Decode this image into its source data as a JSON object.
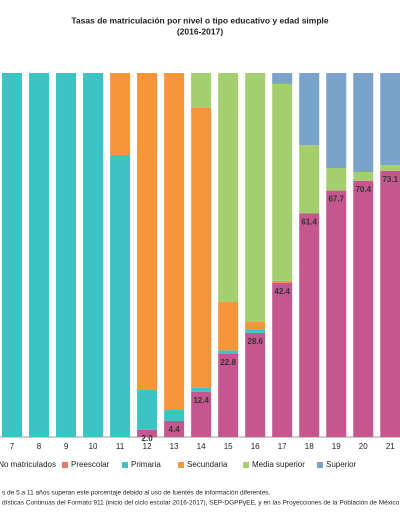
{
  "chart_data": {
    "type": "stacked-bar",
    "title": "Tasas de matriculación por nivel o tipo educativo y edad simple",
    "subtitle": "(2016-2017)",
    "categories": [
      "7",
      "8",
      "9",
      "10",
      "11",
      "12",
      "13",
      "14",
      "15",
      "16",
      "17",
      "18",
      "19",
      "20",
      "21"
    ],
    "ylim": [
      0,
      100
    ],
    "series": [
      {
        "name": "No matriculados",
        "color": "#c5568f",
        "values": [
          0,
          0,
          0,
          0,
          0,
          2.0,
          4.4,
          12.4,
          22.8,
          28.6,
          42.4,
          61.4,
          67.7,
          70.4,
          73.1
        ],
        "value_labels": [
          null,
          null,
          null,
          null,
          null,
          "2.0",
          "4.4",
          "12.4",
          "22.8",
          "28.6",
          "42.4",
          "61.4",
          "67.7",
          "70.4",
          "73.1"
        ]
      },
      {
        "name": "Preescolar",
        "color": "#e9766e",
        "values": [
          0,
          0,
          0,
          0,
          0,
          0,
          0,
          0,
          0,
          0,
          0,
          0,
          0,
          0,
          0
        ]
      },
      {
        "name": "Primaria",
        "color": "#3dc3c3",
        "values": [
          100,
          100,
          100,
          100,
          77.5,
          10.9,
          3,
          1.1,
          1,
          1,
          0,
          0,
          0,
          0,
          0
        ]
      },
      {
        "name": "Secundaria",
        "color": "#f7953b",
        "values": [
          0,
          0,
          0,
          0,
          22.5,
          87.1,
          92.6,
          76.9,
          13.3,
          2,
          0.5,
          0,
          0,
          0,
          0
        ]
      },
      {
        "name": "Media superior",
        "color": "#a3cf6e",
        "values": [
          0,
          0,
          0,
          0,
          0,
          0,
          0,
          9.6,
          62.9,
          68.4,
          54.1,
          18.8,
          6.2,
          2.4,
          1.6
        ]
      },
      {
        "name": "Superior",
        "color": "#7aa3cc",
        "values": [
          0,
          0,
          0,
          0,
          0,
          0,
          0,
          0,
          0,
          0,
          3,
          19.8,
          26.1,
          27.2,
          25.3
        ]
      }
    ],
    "notes": [
      "s de 5 a 11 años superan este porcentaje debido al uso de fuentes de información diferentes.",
      "dísticas Continuas del Formato 911 (inicio del ciclo escolar 2016-2017), SEP-DGPPyEE, y en las Proyecciones de la Población de México"
    ]
  }
}
